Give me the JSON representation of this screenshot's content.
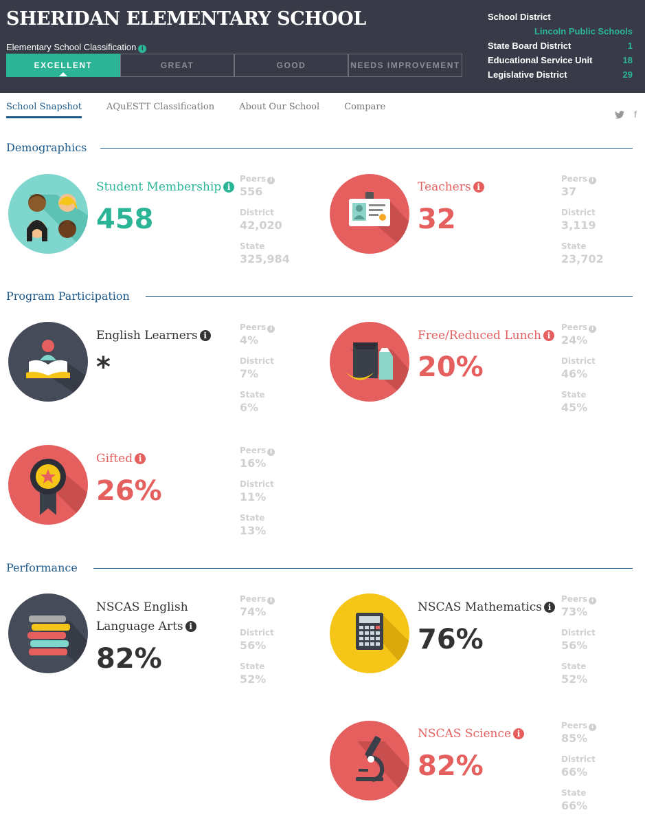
{
  "header": {
    "school_name": "SHERIDAN ELEMENTARY SCHOOL",
    "classification_label": "Elementary School Classification",
    "classifications": [
      "EXCELLENT",
      "GREAT",
      "GOOD",
      "NEEDS IMPROVEMENT"
    ],
    "active_classification": "EXCELLENT",
    "district": {
      "school_district_label": "School District",
      "school_district_value": "Lincoln Public Schools",
      "state_board_label": "State Board District",
      "state_board_value": "1",
      "esu_label": "Educational Service Unit",
      "esu_value": "18",
      "legislative_label": "Legislative District",
      "legislative_value": "29"
    }
  },
  "nav": {
    "tabs": [
      "School Snapshot",
      "AQuESTT Classification",
      "About Our School",
      "Compare"
    ],
    "active": "School Snapshot",
    "twitter_glyph": "𝕥",
    "facebook_glyph": "f"
  },
  "icons": {
    "info": "i"
  },
  "sections": {
    "demographics": "Demographics",
    "program": "Program Participation",
    "performance": "Performance"
  },
  "labels": {
    "peers": "Peers",
    "district": "District",
    "state": "State"
  },
  "stats": {
    "membership": {
      "label": "Student Membership",
      "value": "458",
      "peers": "556",
      "district": "42,020",
      "state": "325,984"
    },
    "teachers": {
      "label": "Teachers",
      "value": "32",
      "peers": "37",
      "district": "3,119",
      "state": "23,702"
    },
    "english_learners": {
      "label": "English Learners",
      "value": "*",
      "peers": "4%",
      "district": "7%",
      "state": "6%"
    },
    "lunch": {
      "label": "Free/Reduced Lunch",
      "value": "20%",
      "peers": "24%",
      "district": "46%",
      "state": "45%"
    },
    "gifted": {
      "label": "Gifted",
      "value": "26%",
      "peers": "16%",
      "district": "11%",
      "state": "13%"
    },
    "ela": {
      "label_line1": "NSCAS English",
      "label_line2": "Language Arts",
      "value": "82%",
      "peers": "74%",
      "district": "56%",
      "state": "52%"
    },
    "math": {
      "label": "NSCAS Mathematics",
      "value": "76%",
      "peers": "73%",
      "district": "56%",
      "state": "52%"
    },
    "science": {
      "label": "NSCAS Science",
      "value": "82%",
      "peers": "85%",
      "district": "66%",
      "state": "66%"
    }
  },
  "colors": {
    "teal": "#2bb596",
    "red": "#e65f5f",
    "navy": "#383b47",
    "blue": "#1d5a8c",
    "yellow": "#f5c518"
  }
}
